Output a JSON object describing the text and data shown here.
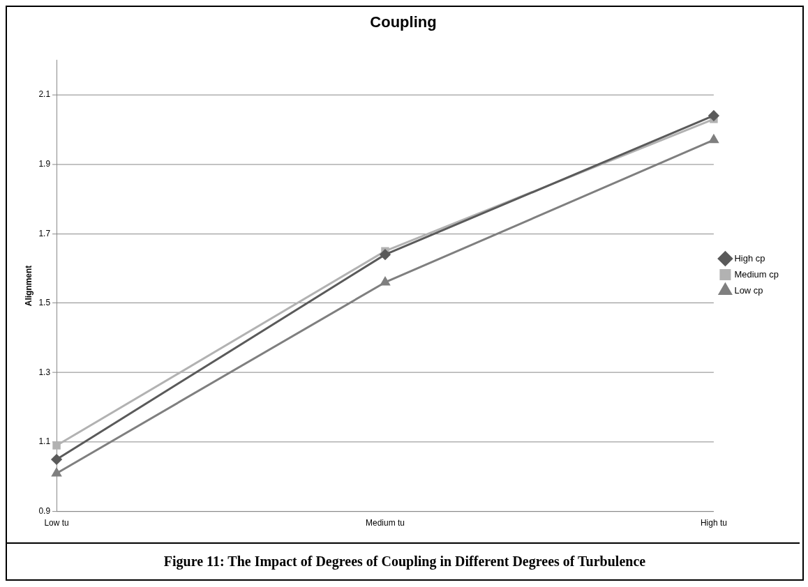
{
  "chart_data": {
    "type": "line",
    "title": "Coupling",
    "ylabel": "Alignment",
    "categories": [
      "Low tu",
      "Medium tu",
      "High tu"
    ],
    "series": [
      {
        "name": "High cp",
        "color": "#5a5a5a",
        "marker": "diamond",
        "values": [
          1.05,
          1.64,
          2.04
        ]
      },
      {
        "name": "Medium cp",
        "color": "#b2b2b2",
        "marker": "square",
        "values": [
          1.09,
          1.65,
          2.03
        ]
      },
      {
        "name": "Low cp",
        "color": "#7f7f7f",
        "marker": "triangle",
        "values": [
          1.01,
          1.56,
          1.97
        ]
      }
    ],
    "ylim": [
      0.9,
      2.2
    ],
    "yticks": [
      0.9,
      1.1,
      1.3,
      1.5,
      1.7,
      1.9,
      2.1
    ],
    "grid": "y",
    "legend": "right",
    "annotations": [
      "Figure 11: The Impact of Degrees of Coupling in Different Degrees of Turbulence"
    ]
  }
}
